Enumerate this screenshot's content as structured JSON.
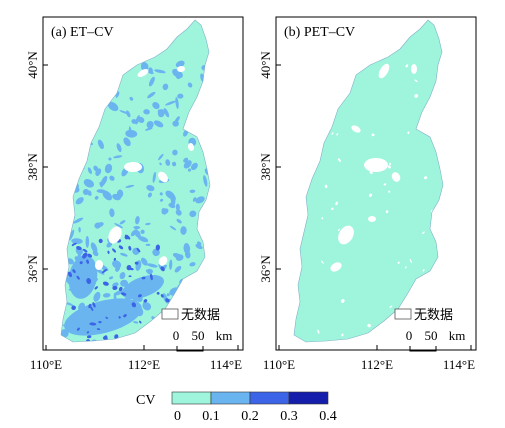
{
  "panels": [
    {
      "id": "a",
      "title": "(a) ET–CV",
      "y_ticks": [
        "40°N",
        "38°N",
        "36°N"
      ],
      "x_ticks": [
        "110°E",
        "112°E",
        "114°E"
      ],
      "nodata_label": "无数据",
      "scalebar_zero": "0",
      "scalebar_value": "50",
      "scalebar_unit": "km",
      "dominant_class": "0–0.1",
      "notes": "mix of 0–0.1 and 0.1–0.2 classes; 0.2–0.3 patches in south"
    },
    {
      "id": "b",
      "title": "(b) PET–CV",
      "y_ticks": [
        "40°N",
        "38°N",
        "36°N"
      ],
      "x_ticks": [
        "110°E",
        "112°E",
        "114°E"
      ],
      "nodata_label": "无数据",
      "scalebar_zero": "0",
      "scalebar_value": "50",
      "scalebar_unit": "km",
      "dominant_class": "0–0.1"
    }
  ],
  "legend": {
    "title": "CV",
    "breaks": [
      "0",
      "0.1",
      "0.2",
      "0.3",
      "0.4"
    ],
    "colors": [
      "#9ff5dc",
      "#6ab4f0",
      "#3c64e6",
      "#141eaa"
    ]
  },
  "colors": {
    "nodata": "#ffffff",
    "class1": "#9ff5dc",
    "class2": "#6ab4f0",
    "class3": "#3c64e6",
    "class4": "#141eaa"
  }
}
